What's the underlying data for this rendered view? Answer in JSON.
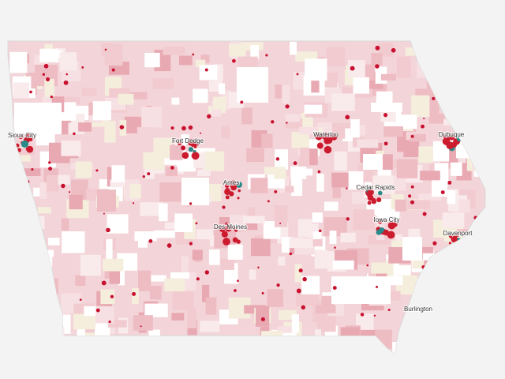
{
  "map": {
    "cities": [
      {
        "name": "Sioux City"
      },
      {
        "name": "Fort Dodge"
      },
      {
        "name": "Waterloo"
      },
      {
        "name": "Dubuque"
      },
      {
        "name": "Ames"
      },
      {
        "name": "Cedar Rapids"
      },
      {
        "name": "Iowa City"
      },
      {
        "name": "Des Moines"
      },
      {
        "name": "Davenport"
      },
      {
        "name": "Burlington"
      }
    ]
  }
}
